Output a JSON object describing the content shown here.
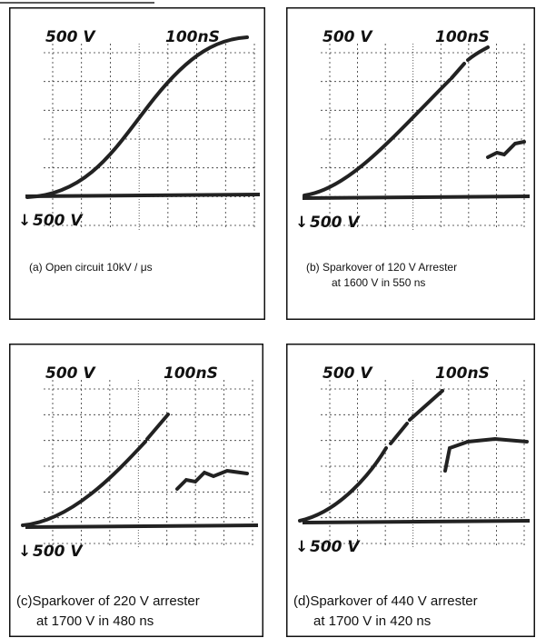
{
  "panels": [
    {
      "volts_label": "500 V",
      "time_label": "100nS",
      "ref_label": "500 V",
      "caption": [
        "(a) Open circuit 10kV / μs"
      ]
    },
    {
      "volts_label": "500 V",
      "time_label": "100nS",
      "ref_label": "500 V",
      "caption": [
        "(b) Sparkover of 120 V Arrester",
        "at 1600 V in 550 ns"
      ]
    },
    {
      "volts_label": "500 V",
      "time_label": "100nS",
      "ref_label": "500 V",
      "caption": [
        "(c)Sparkover of 220 V arrester",
        "at 1700 V in 480 ns"
      ]
    },
    {
      "volts_label": "500 V",
      "time_label": "100nS",
      "ref_label": "500 V",
      "caption": [
        "(d)Sparkover of 440 V arrester",
        "at 1700 V in 420 ns"
      ]
    }
  ]
}
